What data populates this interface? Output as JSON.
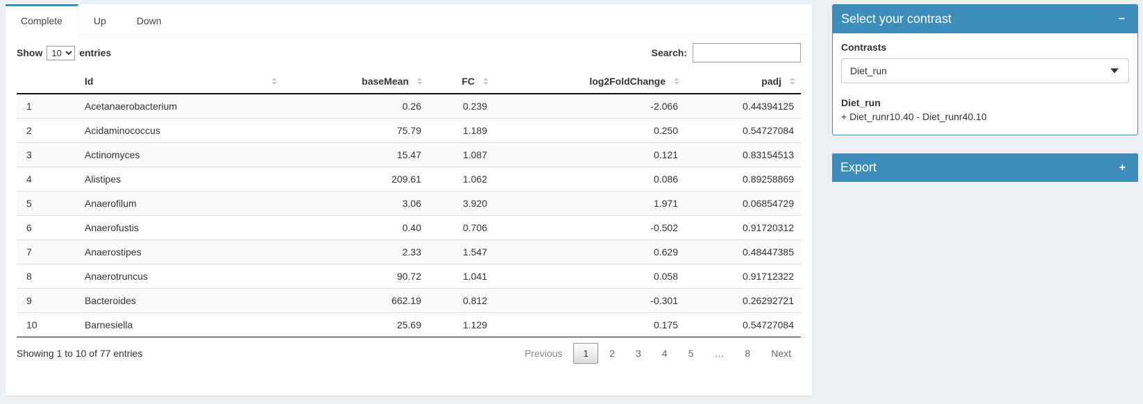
{
  "colors": {
    "primary": "#3c8dbc",
    "page_bg": "#ecf0f5"
  },
  "tabs": [
    {
      "label": "Complete",
      "active": true
    },
    {
      "label": "Up",
      "active": false
    },
    {
      "label": "Down",
      "active": false
    }
  ],
  "controls": {
    "show_label": "Show",
    "page_length": "10",
    "entries_label": "entries",
    "search_label": "Search:",
    "search_value": ""
  },
  "table": {
    "columns": [
      "Id",
      "baseMean",
      "FC",
      "log2FoldChange",
      "padj"
    ],
    "rows": [
      {
        "index": "1",
        "id": "Acetanaerobacterium",
        "baseMean": "0.26",
        "fc": "0.239",
        "log2fc": "-2.066",
        "padj": "0.44394125"
      },
      {
        "index": "2",
        "id": "Acidaminococcus",
        "baseMean": "75.79",
        "fc": "1.189",
        "log2fc": "0.250",
        "padj": "0.54727084"
      },
      {
        "index": "3",
        "id": "Actinomyces",
        "baseMean": "15.47",
        "fc": "1.087",
        "log2fc": "0.121",
        "padj": "0.83154513"
      },
      {
        "index": "4",
        "id": "Alistipes",
        "baseMean": "209.61",
        "fc": "1.062",
        "log2fc": "0.086",
        "padj": "0.89258869"
      },
      {
        "index": "5",
        "id": "Anaerofilum",
        "baseMean": "3.06",
        "fc": "3.920",
        "log2fc": "1.971",
        "padj": "0.06854729"
      },
      {
        "index": "6",
        "id": "Anaerofustis",
        "baseMean": "0.40",
        "fc": "0.706",
        "log2fc": "-0.502",
        "padj": "0.91720312"
      },
      {
        "index": "7",
        "id": "Anaerostipes",
        "baseMean": "2.33",
        "fc": "1.547",
        "log2fc": "0.629",
        "padj": "0.48447385"
      },
      {
        "index": "8",
        "id": "Anaerotruncus",
        "baseMean": "90.72",
        "fc": "1.041",
        "log2fc": "0.058",
        "padj": "0.91712322"
      },
      {
        "index": "9",
        "id": "Bacteroides",
        "baseMean": "662.19",
        "fc": "0.812",
        "log2fc": "-0.301",
        "padj": "0.26292721"
      },
      {
        "index": "10",
        "id": "Barnesiella",
        "baseMean": "25.69",
        "fc": "1.129",
        "log2fc": "0.175",
        "padj": "0.54727084"
      }
    ]
  },
  "footer": {
    "info": "Showing 1 to 10 of 77 entries",
    "pagination": [
      "Previous",
      "1",
      "2",
      "3",
      "4",
      "5",
      "…",
      "8",
      "Next"
    ]
  },
  "contrast_panel": {
    "title": "Select your contrast",
    "collapse_icon": "−",
    "contrasts_label": "Contrasts",
    "selected_contrast": "Diet_run",
    "contrast_name": "Diet_run",
    "contrast_formula": "+ Diet_runr10.40 - Diet_runr40.10"
  },
  "export_panel": {
    "title": "Export",
    "expand_icon": "+"
  }
}
